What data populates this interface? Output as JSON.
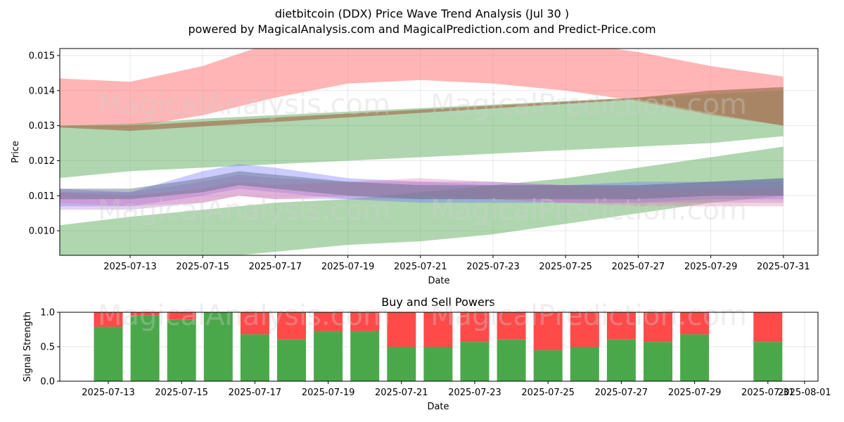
{
  "title": "dietbitcoin (DDX) Price Wave Trend Analysis (Jul 30 )",
  "subtitle": "powered by MagicalAnalysis.com and MagicalPrediction.com and Predict-Price.com",
  "watermarks": [
    "MagicalAnalysis.com",
    "MagicalPrediction.com"
  ],
  "chart_data": [
    {
      "type": "area",
      "xlabel": "Date",
      "ylabel": "Price",
      "ylim": [
        0.0093,
        0.0152
      ],
      "yticks": [
        "0.010",
        "0.011",
        "0.012",
        "0.013",
        "0.014",
        "0.015"
      ],
      "ytick_values": [
        0.01,
        0.011,
        0.012,
        0.013,
        0.014,
        0.015
      ],
      "xticks": [
        "2025-07-13",
        "2025-07-15",
        "2025-07-17",
        "2025-07-19",
        "2025-07-21",
        "2025-07-23",
        "2025-07-25",
        "2025-07-27",
        "2025-07-29",
        "2025-07-31"
      ],
      "grid": true,
      "bands": [
        {
          "color": "#ff6b6b",
          "x": [
            "2025-07-11",
            "2025-07-13",
            "2025-07-15",
            "2025-07-17",
            "2025-07-19",
            "2025-07-21",
            "2025-07-23",
            "2025-07-25",
            "2025-07-27",
            "2025-07-29",
            "2025-07-31"
          ],
          "upper": [
            0.01435,
            0.01425,
            0.0147,
            0.0154,
            0.0156,
            0.0157,
            0.0156,
            0.0154,
            0.0151,
            0.0147,
            0.0144
          ],
          "lower": [
            0.013,
            0.01295,
            0.0133,
            0.0138,
            0.0142,
            0.0143,
            0.0142,
            0.014,
            0.0137,
            0.0133,
            0.013
          ]
        },
        {
          "color": "#4fa34f",
          "x": [
            "2025-07-11",
            "2025-07-13",
            "2025-07-15",
            "2025-07-17",
            "2025-07-19",
            "2025-07-21",
            "2025-07-23",
            "2025-07-25",
            "2025-07-27",
            "2025-07-29",
            "2025-07-31"
          ],
          "upper": [
            0.013,
            0.01305,
            0.0132,
            0.0133,
            0.0134,
            0.0135,
            0.0136,
            0.0137,
            0.0138,
            0.0139,
            0.014
          ],
          "lower": [
            0.0115,
            0.0117,
            0.0118,
            0.0119,
            0.012,
            0.0121,
            0.0122,
            0.0123,
            0.0124,
            0.0125,
            0.0127
          ]
        },
        {
          "color": "#4fa34f",
          "x": [
            "2025-07-11",
            "2025-07-13",
            "2025-07-15",
            "2025-07-17",
            "2025-07-19",
            "2025-07-21",
            "2025-07-23",
            "2025-07-25",
            "2025-07-27",
            "2025-07-29",
            "2025-07-31"
          ],
          "upper": [
            0.01015,
            0.0104,
            0.0106,
            0.0108,
            0.0109,
            0.0111,
            0.0113,
            0.0115,
            0.0118,
            0.0121,
            0.0124
          ],
          "lower": [
            0.0092,
            0.0091,
            0.0092,
            0.0094,
            0.0096,
            0.0097,
            0.0099,
            0.0102,
            0.0105,
            0.0108,
            0.011
          ]
        },
        {
          "color": "#a57a5a",
          "x": [
            "2025-07-11",
            "2025-07-13",
            "2025-07-27",
            "2025-07-29",
            "2025-07-31"
          ],
          "upper": [
            0.013,
            0.013,
            0.0138,
            0.014,
            0.0141
          ],
          "lower": [
            0.01295,
            0.01285,
            0.01375,
            0.01335,
            0.013
          ]
        },
        {
          "color": "#6b6bff",
          "x": [
            "2025-07-11",
            "2025-07-13",
            "2025-07-15",
            "2025-07-16",
            "2025-07-17",
            "2025-07-19",
            "2025-07-21",
            "2025-07-23",
            "2025-07-25",
            "2025-07-27",
            "2025-07-29",
            "2025-07-31"
          ],
          "upper": [
            0.0112,
            0.0111,
            0.0117,
            0.0119,
            0.0118,
            0.0115,
            0.0114,
            0.0114,
            0.0113,
            0.0114,
            0.0114,
            0.0115
          ],
          "lower": [
            0.0107,
            0.0107,
            0.011,
            0.0112,
            0.0111,
            0.0109,
            0.0108,
            0.0108,
            0.0108,
            0.0108,
            0.0109,
            0.0109
          ]
        },
        {
          "color": "#b07ad0",
          "x": [
            "2025-07-11",
            "2025-07-13",
            "2025-07-15",
            "2025-07-16",
            "2025-07-17",
            "2025-07-19",
            "2025-07-21",
            "2025-07-23",
            "2025-07-25",
            "2025-07-27",
            "2025-07-29",
            "2025-07-31"
          ],
          "upper": [
            0.0111,
            0.0111,
            0.0114,
            0.0116,
            0.0115,
            0.0114,
            0.0114,
            0.0113,
            0.0113,
            0.0113,
            0.0114,
            0.0114
          ],
          "lower": [
            0.0106,
            0.0106,
            0.0108,
            0.011,
            0.0109,
            0.0109,
            0.0109,
            0.0109,
            0.0108,
            0.0108,
            0.0108,
            0.0108
          ]
        },
        {
          "color": "#e07ab0",
          "x": [
            "2025-07-11",
            "2025-07-13",
            "2025-07-15",
            "2025-07-16",
            "2025-07-17",
            "2025-07-19",
            "2025-07-21",
            "2025-07-23",
            "2025-07-25",
            "2025-07-27",
            "2025-07-29",
            "2025-07-31"
          ],
          "upper": [
            0.0111,
            0.011,
            0.0112,
            0.0114,
            0.0113,
            0.0114,
            0.0115,
            0.0114,
            0.0113,
            0.0112,
            0.0112,
            0.0112
          ],
          "lower": [
            0.0108,
            0.0107,
            0.0108,
            0.011,
            0.0109,
            0.011,
            0.011,
            0.0109,
            0.0108,
            0.0107,
            0.0107,
            0.0107
          ]
        },
        {
          "color": "#5a6a80",
          "x": [
            "2025-07-11",
            "2025-07-13",
            "2025-07-15",
            "2025-07-16",
            "2025-07-17",
            "2025-07-19",
            "2025-07-21",
            "2025-07-23",
            "2025-07-25",
            "2025-07-27",
            "2025-07-29",
            "2025-07-31"
          ],
          "upper": [
            0.0112,
            0.0112,
            0.0115,
            0.0117,
            0.0116,
            0.0114,
            0.0113,
            0.0113,
            0.0113,
            0.0113,
            0.0114,
            0.0115
          ],
          "lower": [
            0.0109,
            0.0109,
            0.0111,
            0.0113,
            0.0112,
            0.011,
            0.0109,
            0.0109,
            0.0109,
            0.0109,
            0.011,
            0.011
          ]
        }
      ]
    },
    {
      "type": "bar",
      "title": "Buy and Sell Powers",
      "xlabel": "Date",
      "ylabel": "Signal Strength",
      "ylim": [
        0,
        1
      ],
      "yticks": [
        "0.0",
        "0.5",
        "1.0"
      ],
      "ytick_values": [
        0,
        0.5,
        1.0
      ],
      "xticks": [
        "2025-07-13",
        "2025-07-15",
        "2025-07-17",
        "2025-07-19",
        "2025-07-21",
        "2025-07-23",
        "2025-07-25",
        "2025-07-27",
        "2025-07-29",
        "2025-07-31",
        "2025-08-01"
      ],
      "categories": [
        "2025-07-13",
        "2025-07-14",
        "2025-07-15",
        "2025-07-16",
        "2025-07-17",
        "2025-07-18",
        "2025-07-19",
        "2025-07-20",
        "2025-07-21",
        "2025-07-22",
        "2025-07-23",
        "2025-07-24",
        "2025-07-25",
        "2025-07-26",
        "2025-07-27",
        "2025-07-28",
        "2025-07-29",
        "2025-07-31"
      ],
      "series": [
        {
          "color": "#4aa84a",
          "values": [
            0.79,
            0.95,
            0.89,
            1.0,
            0.68,
            0.61,
            0.73,
            0.73,
            0.5,
            0.5,
            0.57,
            0.61,
            0.45,
            0.5,
            0.61,
            0.57,
            0.68,
            0.57
          ]
        },
        {
          "color": "#ff4a4a",
          "values": [
            0.21,
            0.05,
            0.11,
            0.0,
            0.32,
            0.39,
            0.27,
            0.27,
            0.5,
            0.5,
            0.43,
            0.39,
            0.55,
            0.5,
            0.39,
            0.43,
            0.32,
            0.43
          ]
        }
      ],
      "grid": true
    }
  ]
}
